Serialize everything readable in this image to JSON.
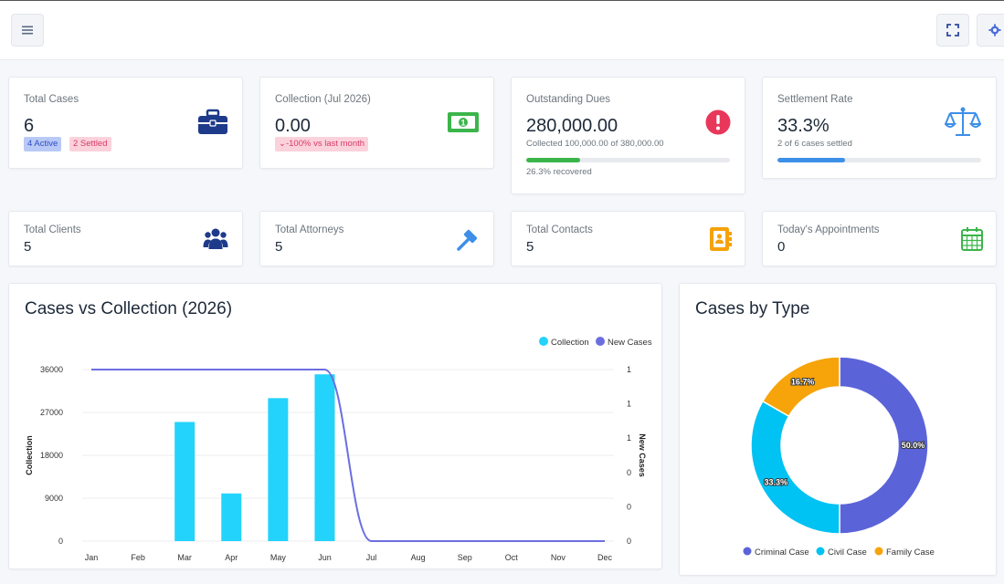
{
  "stats_row1": [
    {
      "label": "Total Cases",
      "value": "6",
      "badges": [
        "4 Active",
        "2 Settled"
      ]
    },
    {
      "label": "Collection (Jul 2026)",
      "value": "0.00",
      "trend": "-100% vs last month"
    },
    {
      "label": "Outstanding Dues",
      "value": "280,000.00",
      "subtitle": "Collected 100,000.00 of 380,000.00",
      "progress_label": "26.3% recovered",
      "progress": 0.263
    },
    {
      "label": "Settlement Rate",
      "value": "33.3%",
      "subtitle": "2 of 6 cases settled",
      "progress": 0.333
    }
  ],
  "stats_row2": [
    {
      "label": "Total Clients",
      "value": "5"
    },
    {
      "label": "Total Attorneys",
      "value": "5"
    },
    {
      "label": "Total Contacts",
      "value": "5"
    },
    {
      "label": "Today's Appointments",
      "value": "0"
    }
  ],
  "colors": {
    "primary": "#1e3a8a",
    "success": "#3bb54a",
    "danger": "#e8375a",
    "info": "#3d8fe8",
    "warning": "#f5a20a",
    "collection": "#23d3fb",
    "new_cases": "#6c6ee0",
    "criminal": "#5b63d9",
    "civil": "#00c2f3",
    "family": "#f7a30a",
    "badge_active_bg": "#b9c9f6",
    "badge_active_fg": "#2f4cc4",
    "badge_settled_bg": "#fbd2dc",
    "badge_settled_fg": "#d93a63"
  },
  "icons": [
    "menu-icon",
    "fullscreen-icon",
    "settings-icon",
    "briefcase-icon",
    "money-icon",
    "alert-icon",
    "scales-icon",
    "users-icon",
    "gavel-icon",
    "contacts-icon",
    "calendar-icon"
  ],
  "chart_data": [
    {
      "type": "bar",
      "title": "Cases vs Collection (2026)",
      "categories": [
        "Jan",
        "Feb",
        "Mar",
        "Apr",
        "May",
        "Jun",
        "Jul",
        "Aug",
        "Sep",
        "Oct",
        "Nov",
        "Dec"
      ],
      "series": [
        {
          "name": "Collection",
          "type": "bar",
          "values": [
            0,
            0,
            25000,
            10000,
            30000,
            35000,
            0,
            0,
            0,
            0,
            0,
            0
          ]
        },
        {
          "name": "New Cases",
          "type": "line",
          "values": [
            1,
            1,
            1,
            1,
            1,
            1,
            0,
            0,
            0,
            0,
            0,
            0
          ]
        }
      ],
      "ylabel": "Collection",
      "y2label": "New Cases",
      "ylim": [
        0,
        36000
      ],
      "y_ticks": [
        "0",
        "9000",
        "18000",
        "27000",
        "36000"
      ],
      "y2_ticks": [
        "0",
        "0",
        "0",
        "1",
        "1",
        "1"
      ],
      "legend": "top-right"
    },
    {
      "type": "pie",
      "title": "Cases by Type",
      "categories": [
        "Criminal Case",
        "Civil Case",
        "Family Case"
      ],
      "values": [
        50.0,
        33.3,
        16.7
      ],
      "data_labels": [
        "50.0%",
        "33.3%",
        "16.7%"
      ],
      "legend": "bottom"
    }
  ]
}
